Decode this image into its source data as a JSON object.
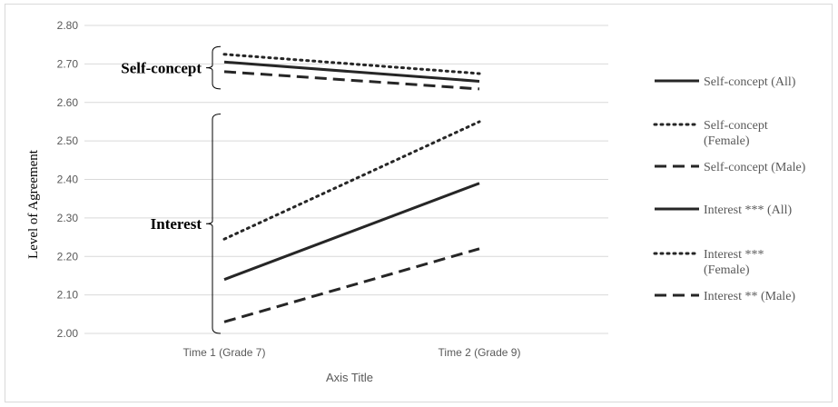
{
  "chart_data": {
    "type": "line",
    "title": "",
    "xlabel": "Axis Title",
    "ylabel": "Level of Agreement",
    "categories": [
      "Time 1 (Grade 7)",
      "Time 2 (Grade 9)"
    ],
    "ylim": [
      2.0,
      2.8
    ],
    "yticks": [
      "2.00",
      "2.10",
      "2.20",
      "2.30",
      "2.40",
      "2.50",
      "2.60",
      "2.70",
      "2.80"
    ],
    "grid": true,
    "legend_position": "right",
    "series": [
      {
        "name": "Self-concept (All)",
        "style": "solid",
        "values": [
          2.705,
          2.655
        ]
      },
      {
        "name": "Self-concept (Female)",
        "style": "dotted",
        "values": [
          2.725,
          2.675
        ]
      },
      {
        "name": "Self-concept (Male)",
        "style": "dashed",
        "values": [
          2.68,
          2.635
        ]
      },
      {
        "name": "Interest *** (All)",
        "style": "solid",
        "values": [
          2.14,
          2.39
        ]
      },
      {
        "name": "Interest *** (Female)",
        "style": "dotted",
        "values": [
          2.245,
          2.55
        ]
      },
      {
        "name": "Interest ** (Male)",
        "style": "dashed",
        "values": [
          2.03,
          2.22
        ]
      }
    ],
    "annotations": [
      {
        "label": "Self-concept",
        "range": [
          2.635,
          2.745
        ]
      },
      {
        "label": "Interest",
        "range": [
          2.0,
          2.57
        ]
      }
    ],
    "colors": {
      "line": "#262626",
      "grid": "#d9d9d9",
      "tick_text": "#595959"
    }
  }
}
